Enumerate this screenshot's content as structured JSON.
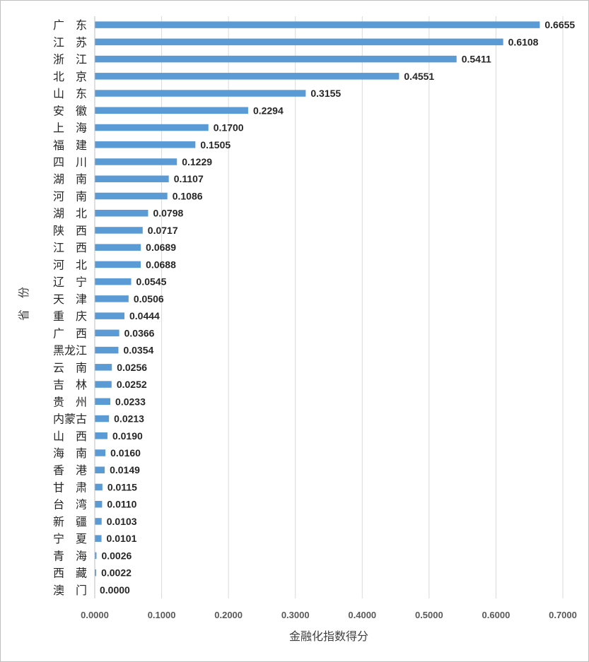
{
  "chart_data": {
    "type": "bar",
    "orientation": "horizontal",
    "categories": [
      "广　东",
      "江　苏",
      "浙　江",
      "北　京",
      "山　东",
      "安　徽",
      "上　海",
      "福　建",
      "四　川",
      "湖　南",
      "河　南",
      "湖　北",
      "陕　西",
      "江　西",
      "河　北",
      "辽　宁",
      "天　津",
      "重　庆",
      "广　西",
      "黑龙江",
      "云　南",
      "吉　林",
      "贵　州",
      "内蒙古",
      "山　西",
      "海　南",
      "香　港",
      "甘　肃",
      "台　湾",
      "新　疆",
      "宁　夏",
      "青　海",
      "西　藏",
      "澳　门"
    ],
    "values": [
      0.6655,
      0.6108,
      0.5411,
      0.4551,
      0.3155,
      0.2294,
      0.17,
      0.1505,
      0.1229,
      0.1107,
      0.1086,
      0.0798,
      0.0717,
      0.0689,
      0.0688,
      0.0545,
      0.0506,
      0.0444,
      0.0366,
      0.0354,
      0.0256,
      0.0252,
      0.0233,
      0.0213,
      0.019,
      0.016,
      0.0149,
      0.0115,
      0.011,
      0.0103,
      0.0101,
      0.0026,
      0.0022,
      0.0
    ],
    "data_labels": [
      "0.6655",
      "0.6108",
      "0.5411",
      "0.4551",
      "0.3155",
      "0.2294",
      "0.1700",
      "0.1505",
      "0.1229",
      "0.1107",
      "0.1086",
      "0.0798",
      "0.0717",
      "0.0689",
      "0.0688",
      "0.0545",
      "0.0506",
      "0.0444",
      "0.0366",
      "0.0354",
      "0.0256",
      "0.0252",
      "0.0233",
      "0.0213",
      "0.0190",
      "0.0160",
      "0.0149",
      "0.0115",
      "0.0110",
      "0.0103",
      "0.0101",
      "0.0026",
      "0.0022",
      "0.0000"
    ],
    "x_ticks": [
      0.0,
      0.1,
      0.2,
      0.3,
      0.4,
      0.5,
      0.6,
      0.7
    ],
    "x_tick_labels": [
      "0.0000",
      "0.1000",
      "0.2000",
      "0.3000",
      "0.4000",
      "0.5000",
      "0.6000",
      "0.7000"
    ],
    "xlim": [
      0,
      0.7
    ],
    "xlabel": "金融化指数得分",
    "ylabel": "省　份",
    "grid": "vertical",
    "series_color": "#5b9bd5"
  }
}
